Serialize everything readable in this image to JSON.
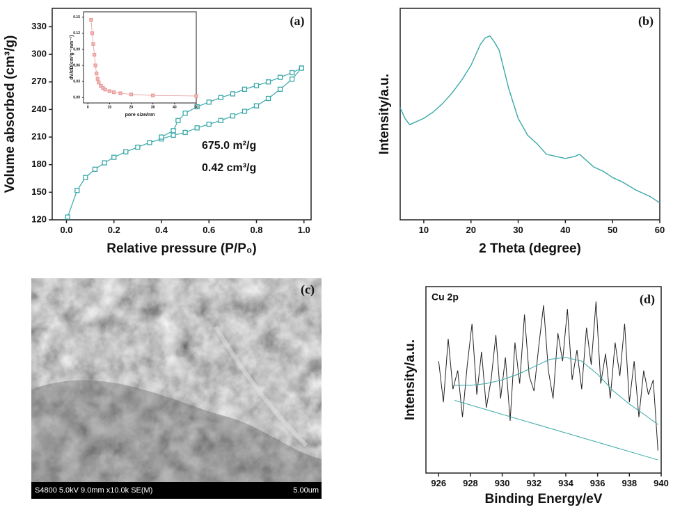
{
  "chart_data": [
    {
      "type": "line",
      "panel_label": "(a)",
      "x_label": "Relative pressure (P/P₀)",
      "y_label": "Volume absorbed (cm³/g)",
      "annotations": [
        "675.0 m²/g",
        "0.42 cm³/g"
      ],
      "markers": true,
      "xlim": [
        -0.06,
        1.03
      ],
      "ylim": [
        120,
        350
      ],
      "xticks": [
        {
          "value": 0,
          "label": "0.0"
        },
        0.2,
        0.4,
        0.6,
        0.8,
        {
          "value": 1,
          "label": "1.0"
        }
      ],
      "yticks": [
        120,
        150,
        180,
        210,
        240,
        270,
        300,
        330
      ],
      "series": [
        {
          "color": "#3aa8a8",
          "x": [
            0.005,
            0.045,
            0.08,
            0.12,
            0.16,
            0.2,
            0.25,
            0.3,
            0.35,
            0.4,
            0.45,
            0.5,
            0.55,
            0.6,
            0.65,
            0.7,
            0.75,
            0.8,
            0.85,
            0.9,
            0.95,
            0.99
          ],
          "values": [
            123,
            152,
            166,
            175,
            182,
            188,
            194,
            199,
            204,
            208,
            212,
            215,
            220,
            224,
            228,
            233,
            238,
            244,
            252,
            262,
            273,
            285
          ]
        },
        {
          "color": "#3aa8a8",
          "x": [
            0.99,
            0.95,
            0.9,
            0.85,
            0.8,
            0.75,
            0.7,
            0.65,
            0.6,
            0.55,
            0.5,
            0.47,
            0.45,
            0.4
          ],
          "values": [
            285,
            280,
            275,
            270,
            266,
            262,
            257,
            253,
            248,
            243,
            236,
            228,
            217,
            210
          ]
        }
      ]
    },
    {
      "type": "line",
      "x_label": "pore size/nm",
      "y_label": "dV/dD(cm³g⁻¹nm⁻¹)",
      "markers": true,
      "xlim": [
        -2,
        50
      ],
      "ylim": [
        -0.01,
        0.16
      ],
      "xticks": [
        0,
        10,
        20,
        30,
        40,
        50
      ],
      "yticks": [
        {
          "value": 0,
          "label": "0.00"
        },
        {
          "value": 0.03,
          "label": "0.03"
        },
        {
          "value": 0.06,
          "label": "0.06"
        },
        {
          "value": 0.09,
          "label": "0.09"
        },
        {
          "value": 0.12,
          "label": "0.12"
        },
        {
          "value": 0.15,
          "label": "0.15"
        }
      ],
      "series": [
        {
          "color": "#e89a9a",
          "x": [
            1.5,
            2,
            2.5,
            3,
            3.5,
            4,
            4.5,
            5,
            6,
            7,
            8,
            10,
            12,
            15,
            20,
            30,
            50
          ],
          "values": [
            0.145,
            0.12,
            0.1,
            0.08,
            0.06,
            0.045,
            0.035,
            0.028,
            0.022,
            0.018,
            0.015,
            0.012,
            0.01,
            0.008,
            0.006,
            0.004,
            0.003
          ]
        }
      ]
    },
    {
      "type": "line",
      "panel_label": "(b)",
      "x_label": "2 Theta (degree)",
      "y_label": "Intensity/a.u.",
      "xlim": [
        5,
        60
      ],
      "ylim": [
        0,
        100
      ],
      "xticks": [
        10,
        20,
        30,
        40,
        50,
        60
      ],
      "series": [
        {
          "color": "#3aa8a8",
          "x": [
            5,
            6,
            7,
            8,
            9,
            10,
            12,
            14,
            16,
            18,
            20,
            21,
            22,
            23,
            24,
            25,
            26,
            27,
            28,
            30,
            32,
            34,
            36,
            38,
            40,
            42,
            43,
            44,
            46,
            48,
            50,
            52,
            55,
            58,
            60
          ],
          "values": [
            53,
            48,
            45,
            46,
            47,
            48,
            51,
            55,
            60,
            66,
            73,
            78,
            83,
            86,
            87,
            84,
            80,
            71,
            62,
            48,
            40,
            36,
            31,
            30,
            29,
            30,
            31,
            29,
            25,
            23,
            20,
            18,
            14,
            11,
            8
          ]
        }
      ]
    },
    {
      "type": "line",
      "title": "Cu 2p",
      "panel_label": "(d)",
      "x_label": "Binding Energy/eV",
      "y_label": "Intensity/a.u.",
      "xlim": [
        925.2,
        940
      ],
      "ylim": [
        0,
        100
      ],
      "xticks": [
        926,
        928,
        930,
        932,
        934,
        936,
        938,
        940
      ],
      "series": [
        {
          "color": "#222222",
          "x": [
            926,
            926.3,
            926.6,
            926.9,
            927.2,
            927.5,
            927.8,
            928.1,
            928.4,
            928.7,
            929,
            929.3,
            929.6,
            929.9,
            930.2,
            930.5,
            930.8,
            931.1,
            931.4,
            931.7,
            932,
            932.3,
            932.6,
            932.9,
            933.2,
            933.5,
            933.8,
            934.1,
            934.4,
            934.7,
            935,
            935.3,
            935.6,
            935.9,
            936.2,
            936.5,
            936.8,
            937.1,
            937.4,
            937.7,
            938,
            938.3,
            938.6,
            938.9,
            939.2,
            939.5,
            939.8
          ],
          "values": [
            60,
            38,
            72,
            45,
            55,
            30,
            58,
            80,
            42,
            65,
            35,
            50,
            74,
            40,
            62,
            28,
            70,
            48,
            85,
            52,
            44,
            68,
            90,
            55,
            40,
            75,
            60,
            88,
            50,
            66,
            45,
            78,
            58,
            92,
            48,
            64,
            40,
            70,
            52,
            80,
            38,
            60,
            30,
            55,
            42,
            50,
            12
          ]
        },
        {
          "color": "#3aa8a8",
          "x": [
            927,
            928,
            929,
            930,
            931,
            932,
            933,
            934,
            935,
            936,
            937,
            938,
            939,
            939.8
          ],
          "values": [
            47,
            47,
            48,
            50,
            53,
            57,
            61,
            62,
            60,
            53,
            44,
            37,
            31,
            26
          ]
        },
        {
          "color": "#3aa8a8",
          "x": [
            927,
            939.8
          ],
          "values": [
            39,
            7
          ]
        }
      ]
    }
  ],
  "image": {
    "label": "(c)",
    "info": "S4800 5.0kV 9.0mm x10.0k SE(M)",
    "scale": "5.00um"
  }
}
